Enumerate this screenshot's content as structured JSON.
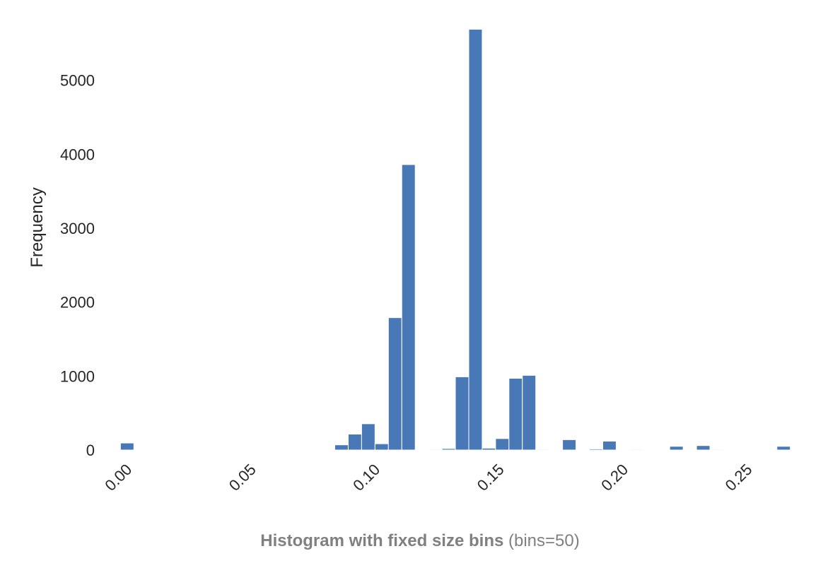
{
  "chart_data": {
    "type": "bar",
    "bar_color": "#4878b5",
    "caption_bold": "Histogram with fixed size bins",
    "caption_normal": " (bins=50)",
    "xlabel": "",
    "ylabel": "Frequency",
    "grid": false,
    "xlim": [
      -0.0085,
      0.2765
    ],
    "ylim": [
      0,
      5990
    ],
    "x_ticks": [
      0.0,
      0.05,
      0.1,
      0.15,
      0.2,
      0.25
    ],
    "x_tick_labels": [
      "0.00",
      "0.05",
      "0.10",
      "0.15",
      "0.20",
      "0.25"
    ],
    "y_ticks": [
      0,
      1000,
      2000,
      3000,
      4000,
      5000
    ],
    "y_tick_labels": [
      "0",
      "1000",
      "2000",
      "3000",
      "4000",
      "5000"
    ],
    "bin_width": 0.0054,
    "bins": [
      {
        "x": 0.0,
        "value": 95
      },
      {
        "x": 0.0864,
        "value": 70
      },
      {
        "x": 0.0918,
        "value": 215
      },
      {
        "x": 0.0972,
        "value": 355
      },
      {
        "x": 0.1026,
        "value": 85
      },
      {
        "x": 0.108,
        "value": 1790
      },
      {
        "x": 0.1134,
        "value": 3860
      },
      {
        "x": 0.1242,
        "value": 10
      },
      {
        "x": 0.1296,
        "value": 20
      },
      {
        "x": 0.135,
        "value": 990
      },
      {
        "x": 0.1404,
        "value": 5690
      },
      {
        "x": 0.1458,
        "value": 25
      },
      {
        "x": 0.1512,
        "value": 155
      },
      {
        "x": 0.1566,
        "value": 970
      },
      {
        "x": 0.162,
        "value": 1010
      },
      {
        "x": 0.1674,
        "value": 10
      },
      {
        "x": 0.1782,
        "value": 140
      },
      {
        "x": 0.189,
        "value": 15
      },
      {
        "x": 0.1944,
        "value": 120
      },
      {
        "x": 0.2052,
        "value": 10
      },
      {
        "x": 0.2214,
        "value": 50
      },
      {
        "x": 0.2322,
        "value": 60
      },
      {
        "x": 0.2376,
        "value": 10
      },
      {
        "x": 0.2646,
        "value": 50
      }
    ]
  }
}
